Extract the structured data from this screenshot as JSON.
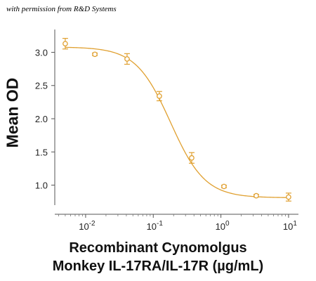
{
  "watermark": "with permission from R&D Systems",
  "chart_data": {
    "type": "scatter",
    "title": "",
    "xlabel_line1": "Recombinant Cynomolgus",
    "xlabel_line2": "Monkey IL-17RA/IL-17R (µg/mL)",
    "ylabel": "Mean OD",
    "xscale": "log",
    "xlim": [
      0.0035,
      14
    ],
    "ylim": [
      0.72,
      3.28
    ],
    "grid": false,
    "legend": "none",
    "color": "#e0a030",
    "x_ticks": [
      {
        "base": "10",
        "exp": "-2",
        "value": 0.01
      },
      {
        "base": "10",
        "exp": "-1",
        "value": 0.1
      },
      {
        "base": "10",
        "exp": "0",
        "value": 1
      },
      {
        "base": "10",
        "exp": "1",
        "value": 10
      }
    ],
    "y_ticks": [
      "1.0",
      "1.5",
      "2.0",
      "2.5",
      "3.0"
    ],
    "y_tick_values": [
      1.0,
      1.5,
      2.0,
      2.5,
      3.0
    ],
    "series": [
      {
        "x": [
          0.005,
          0.0137,
          0.041,
          0.123,
          0.37,
          1.11,
          3.33,
          10
        ],
        "y": [
          3.13,
          2.97,
          2.9,
          2.34,
          1.41,
          0.98,
          0.84,
          0.82
        ],
        "error": [
          0.08,
          0.02,
          0.08,
          0.07,
          0.08,
          0.02,
          0.02,
          0.06
        ]
      }
    ]
  }
}
